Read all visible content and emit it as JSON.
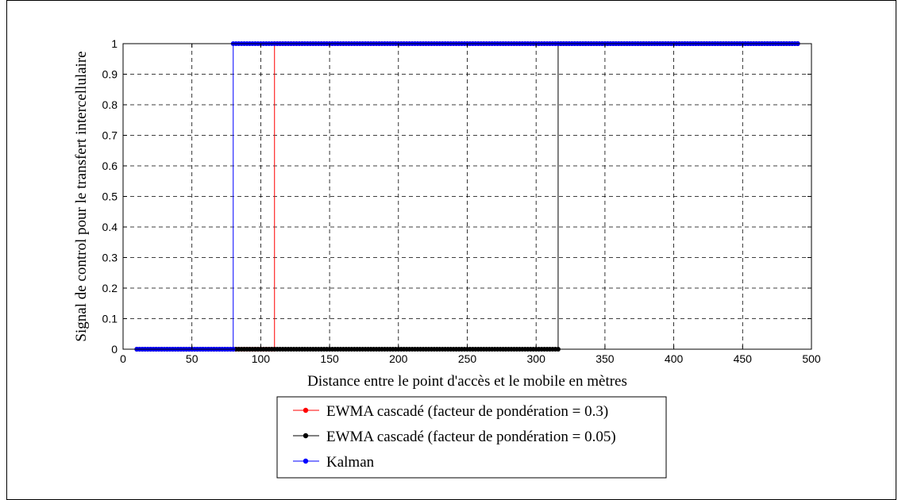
{
  "chart_data": {
    "type": "line",
    "title": "",
    "xlabel": "Distance entre le point d'accès et le mobile en mètres",
    "ylabel": "Signal de control pour le transfert intercellulaire",
    "xlim": [
      0,
      500
    ],
    "ylim": [
      0,
      1
    ],
    "xticks": [
      0,
      50,
      100,
      150,
      200,
      250,
      300,
      350,
      400,
      450,
      500
    ],
    "yticks": [
      0,
      0.1,
      0.2,
      0.3,
      0.4,
      0.5,
      0.6,
      0.7,
      0.8,
      0.9,
      1
    ],
    "xtick_labels": [
      "0",
      "50",
      "100",
      "150",
      "200",
      "250",
      "300",
      "350",
      "400",
      "450",
      "500"
    ],
    "ytick_labels": [
      "0",
      "0.1",
      "0.2",
      "0.3",
      "0.4",
      "0.5",
      "0.6",
      "0.7",
      "0.8",
      "0.9",
      "1"
    ],
    "grid": true,
    "legend_position": "bottom-center",
    "series": [
      {
        "name": "EWMA cascadé (facteur de pondération = 0.3)",
        "color": "#ff0000",
        "x": [
          10,
          110,
          110,
          490
        ],
        "y": [
          0,
          0,
          1,
          1
        ]
      },
      {
        "name": "EWMA cascadé (facteur de pondération = 0.05)",
        "color": "#000000",
        "x": [
          10,
          316,
          316,
          490
        ],
        "y": [
          0,
          0,
          1,
          1
        ]
      },
      {
        "name": "Kalman",
        "color": "#0000ff",
        "x": [
          10,
          80,
          80,
          490
        ],
        "y": [
          0,
          0,
          1,
          1
        ]
      }
    ]
  }
}
